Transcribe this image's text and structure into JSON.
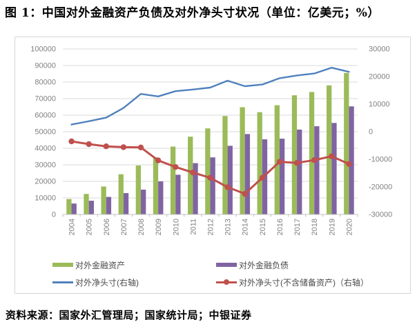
{
  "title": "图 1：中国对外金融资产负债及对外净头寸状况（单位：亿美元；%）",
  "source": "资料来源：国家外汇管理局；国家统计局；中银证券",
  "colors": {
    "assets_green": "#9BBB59",
    "liabilities_purple": "#8064A2",
    "net_blue": "#4F81BD",
    "net_ex_reserves_red": "#C0504D",
    "gridline": "#D9D9D9",
    "axis_line": "#C3C3C3",
    "tick": "#BFBFBF",
    "axis_text": "#808080",
    "legend_text": "#4a4a4a"
  },
  "legend": {
    "assets": "对外金融资产",
    "liabilities": "对外金融负债",
    "net": "对外净头寸(右轴)",
    "net_ex_reserves": "对外净头寸(不含储备资产)（右轴）"
  },
  "chart_data": {
    "type": "bar",
    "subtype": "bar-line combo, dual axis",
    "grid": true,
    "legend_position": "bottom",
    "categories": [
      "2004",
      "2005",
      "2006",
      "2007",
      "2008",
      "2009",
      "2010",
      "2011",
      "2012",
      "2013",
      "2014",
      "2015",
      "2016",
      "2017",
      "2018",
      "2019",
      "2020"
    ],
    "left_axis": {
      "min": 0,
      "max": 100000,
      "step": 10000,
      "ticks": [
        "0",
        "10000",
        "20000",
        "30000",
        "40000",
        "50000",
        "60000",
        "70000",
        "80000",
        "90000",
        "100000"
      ]
    },
    "right_axis": {
      "min": -30000,
      "max": 30000,
      "step": 10000,
      "ticks": [
        "-30000",
        "-20000",
        "-10000",
        "0",
        "10000",
        "20000",
        "30000"
      ]
    },
    "series": [
      {
        "name": "对外金融资产",
        "type": "bar",
        "axis": "left",
        "color": "#9BBB59",
        "values": [
          9300,
          12400,
          16900,
          24300,
          29600,
          34500,
          41000,
          47000,
          52000,
          59500,
          64800,
          61800,
          66000,
          72000,
          74000,
          78000,
          85500
        ]
      },
      {
        "name": "对外金融负债",
        "type": "bar",
        "axis": "left",
        "color": "#8064A2",
        "values": [
          6600,
          8300,
          10600,
          12900,
          15000,
          20000,
          24000,
          31000,
          34500,
          41500,
          48600,
          45400,
          45800,
          51300,
          53300,
          55300,
          65300
        ]
      },
      {
        "name": "对外净头寸(右轴)",
        "type": "line",
        "axis": "right",
        "color": "#4F81BD",
        "marker": "none",
        "values": [
          2600,
          3800,
          5100,
          8600,
          13700,
          12800,
          14700,
          15300,
          16000,
          18500,
          16500,
          17100,
          19400,
          20400,
          21100,
          23200,
          21700
        ]
      },
      {
        "name": "对外净头寸(不含储备资产)（右轴）",
        "type": "line",
        "axis": "right",
        "color": "#C0504D",
        "marker": "circle",
        "values": [
          -3500,
          -4500,
          -5300,
          -5600,
          -5700,
          -10400,
          -12800,
          -14800,
          -16700,
          -20100,
          -22500,
          -16700,
          -10900,
          -11300,
          -10300,
          -8900,
          -11700
        ]
      }
    ]
  }
}
